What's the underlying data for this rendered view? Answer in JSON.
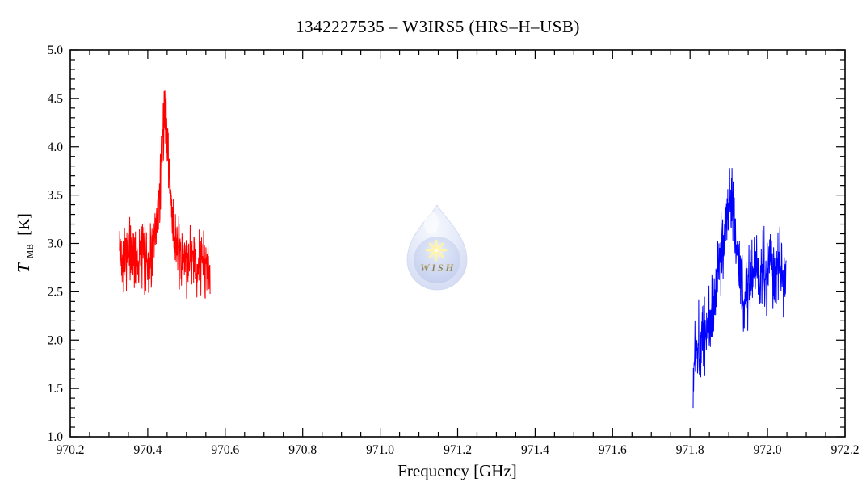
{
  "chart_data": {
    "type": "line",
    "title": "1342227535 – W3IRS5 (HRS–H–USB)",
    "xlabel": "Frequency [GHz]",
    "ylabel": "T_MB [K]",
    "ylabel_parts": {
      "symbol": "T",
      "subscript": "MB",
      "unit": "[K]"
    },
    "xlim": [
      970.2,
      972.2
    ],
    "ylim": [
      1.0,
      5.0
    ],
    "x_major_ticks": [
      970.2,
      970.4,
      970.6,
      970.8,
      971.0,
      971.2,
      971.4,
      971.6,
      971.8,
      972.0,
      972.2
    ],
    "x_minor_step": 0.05,
    "y_major_ticks": [
      1.0,
      1.5,
      2.0,
      2.5,
      3.0,
      3.5,
      4.0,
      4.5,
      5.0
    ],
    "y_minor_step": 0.1,
    "tick_label_decimals": 1,
    "grid": false,
    "legend": null,
    "series": [
      {
        "name": "red-segment",
        "color": "#ff0000",
        "x_start": 970.327,
        "x_end": 970.561,
        "channel_width": 0.0006,
        "noise_amplitude": 0.44,
        "seed": 42,
        "y_clip": [
          2.3,
          4.58
        ],
        "baseline": 2.85,
        "peak": {
          "freq": 970.445,
          "T_max": 4.57
        },
        "envelope_points": [
          [
            970.327,
            2.9
          ],
          [
            970.36,
            2.88
          ],
          [
            970.4,
            2.86
          ],
          [
            970.418,
            2.95
          ],
          [
            970.428,
            3.35
          ],
          [
            970.436,
            3.95
          ],
          [
            970.442,
            4.32
          ],
          [
            970.446,
            4.38
          ],
          [
            970.45,
            4.12
          ],
          [
            970.458,
            3.55
          ],
          [
            970.468,
            3.08
          ],
          [
            970.48,
            2.86
          ],
          [
            970.5,
            2.8
          ],
          [
            970.53,
            2.82
          ],
          [
            970.561,
            2.78
          ]
        ]
      },
      {
        "name": "blue-segment",
        "color": "#0000ff",
        "x_start": 971.808,
        "x_end": 972.048,
        "channel_width": 0.0006,
        "noise_amplitude": 0.5,
        "seed": 1337,
        "y_clip": [
          1.3,
          3.78
        ],
        "baseline": 2.7,
        "peak": {
          "freq": 971.908,
          "T_max": 3.77
        },
        "envelope_points": [
          [
            971.808,
            1.4
          ],
          [
            971.812,
            1.95
          ],
          [
            971.82,
            2.02
          ],
          [
            971.828,
            2.0
          ],
          [
            971.84,
            2.1
          ],
          [
            971.852,
            2.25
          ],
          [
            971.862,
            2.45
          ],
          [
            971.872,
            2.65
          ],
          [
            971.882,
            2.95
          ],
          [
            971.892,
            3.2
          ],
          [
            971.9,
            3.42
          ],
          [
            971.906,
            3.5
          ],
          [
            971.912,
            3.38
          ],
          [
            971.92,
            3.0
          ],
          [
            971.928,
            2.65
          ],
          [
            971.936,
            2.45
          ],
          [
            971.944,
            2.5
          ],
          [
            971.955,
            2.62
          ],
          [
            971.97,
            2.7
          ],
          [
            972.0,
            2.72
          ],
          [
            972.02,
            2.7
          ],
          [
            972.048,
            2.68
          ]
        ]
      }
    ]
  },
  "watermark": {
    "label": "WISH",
    "colors": {
      "drop_light": "#e7eefb",
      "drop_mid": "#b7c4ec",
      "drop_edge": "#9fb0e4",
      "sphere": "#8fa5e0",
      "star_yellow": "#ffe84d",
      "text_yellow": "#f0da3f"
    }
  }
}
